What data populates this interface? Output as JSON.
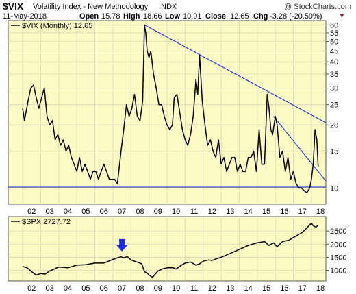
{
  "header": {
    "symbol": "$VIX",
    "name": "Volatility Index - New Methodology",
    "exchange": "INDX",
    "copyright": "@ StockCharts.com",
    "date": "11-May-2018",
    "open_label": "Open",
    "open": "15.78",
    "high_label": "High",
    "high": "18.66",
    "low_label": "Low",
    "low": "10.91",
    "close_label": "Close",
    "close": "12.65",
    "chg_label": "Chg",
    "chg": "-3.28 (-20.59%)",
    "chg_marker": "▼"
  },
  "colors": {
    "panel_bg": "#fafac3",
    "price_line": "#000000",
    "trendline": "#1c2bd6",
    "arrow": "#1c2be8",
    "grid": "#d7d7b9",
    "chg_marker": "#8b1538"
  },
  "chart_data": [
    {
      "type": "line",
      "legend": "$VIX (Monthly) 12.65",
      "scale": "log",
      "ylim": [
        8.5,
        62
      ],
      "yticks": [
        "60",
        "55",
        "50",
        "45",
        "40",
        "35",
        "30",
        "25",
        "20",
        "15",
        "10"
      ],
      "xticks": [
        "02",
        "03",
        "04",
        "05",
        "06",
        "07",
        "08",
        "09",
        "10",
        "11",
        "12",
        "13",
        "14",
        "15",
        "16",
        "17",
        "18"
      ],
      "x": [
        2002.0,
        2002.1,
        2002.3,
        2002.45,
        2002.6,
        2002.75,
        2002.9,
        2003.05,
        2003.2,
        2003.35,
        2003.5,
        2003.65,
        2003.8,
        2003.95,
        2004.1,
        2004.25,
        2004.4,
        2004.55,
        2004.7,
        2004.85,
        2005.0,
        2005.15,
        2005.3,
        2005.45,
        2005.6,
        2005.75,
        2005.9,
        2006.05,
        2006.2,
        2006.35,
        2006.5,
        2006.65,
        2006.8,
        2006.95,
        2007.1,
        2007.25,
        2007.45,
        2007.6,
        2007.75,
        2007.9,
        2008.05,
        2008.2,
        2008.35,
        2008.5,
        2008.65,
        2008.75,
        2008.82,
        2008.9,
        2009.0,
        2009.1,
        2009.25,
        2009.4,
        2009.55,
        2009.7,
        2009.85,
        2010.0,
        2010.15,
        2010.3,
        2010.4,
        2010.55,
        2010.7,
        2010.85,
        2011.0,
        2011.15,
        2011.3,
        2011.45,
        2011.6,
        2011.7,
        2011.8,
        2011.95,
        2012.1,
        2012.25,
        2012.4,
        2012.55,
        2012.7,
        2012.85,
        2013.0,
        2013.15,
        2013.3,
        2013.45,
        2013.6,
        2013.75,
        2013.9,
        2014.05,
        2014.2,
        2014.35,
        2014.5,
        2014.65,
        2014.8,
        2014.95,
        2015.1,
        2015.25,
        2015.4,
        2015.55,
        2015.65,
        2015.75,
        2015.85,
        2016.0,
        2016.1,
        2016.25,
        2016.4,
        2016.55,
        2016.7,
        2016.85,
        2017.0,
        2017.15,
        2017.3,
        2017.45,
        2017.6,
        2017.75,
        2017.9,
        2018.0,
        2018.1,
        2018.2,
        2018.3,
        2018.37
      ],
      "values": [
        24,
        21,
        26,
        30,
        31,
        27,
        24,
        27,
        30,
        22,
        20,
        21,
        17,
        18,
        16,
        17,
        15,
        16,
        14,
        13,
        12,
        14,
        12,
        13,
        12,
        11,
        12,
        12,
        11,
        12,
        13,
        12,
        11,
        11,
        11,
        10.5,
        15,
        19,
        25,
        22,
        24,
        28,
        22,
        21,
        26,
        60,
        55,
        45,
        42,
        45,
        35,
        30,
        25,
        25,
        22,
        20,
        19,
        20,
        27,
        28,
        23,
        19,
        17,
        16,
        18,
        22,
        33,
        28,
        43,
        26,
        20,
        16,
        17,
        15,
        14,
        17,
        13,
        14,
        12,
        13,
        14,
        14,
        12,
        13,
        12,
        12,
        14,
        14,
        15,
        12,
        19,
        13,
        13,
        28,
        24,
        19,
        18,
        22,
        20,
        14,
        15,
        12,
        14,
        11,
        12,
        10.5,
        10,
        10,
        9.7,
        9.5,
        10,
        11,
        13,
        19,
        17,
        12.65
      ]
    },
    {
      "type": "line",
      "legend": "$SPX 2727.72",
      "ylim": [
        650,
        3000
      ],
      "yticks": [
        "2500",
        "2000",
        "1500",
        "1000"
      ],
      "xticks": [
        "02",
        "03",
        "04",
        "05",
        "06",
        "07",
        "08",
        "09",
        "10",
        "11",
        "12",
        "13",
        "14",
        "15",
        "16",
        "17",
        "18"
      ],
      "x": [
        2002.0,
        2002.25,
        2002.5,
        2002.75,
        2003.0,
        2003.25,
        2003.5,
        2003.75,
        2004.0,
        2004.5,
        2005.0,
        2005.5,
        2006.0,
        2006.5,
        2007.0,
        2007.25,
        2007.45,
        2007.6,
        2007.8,
        2008.0,
        2008.2,
        2008.4,
        2008.6,
        2008.75,
        2008.9,
        2009.0,
        2009.2,
        2009.5,
        2009.75,
        2010.0,
        2010.35,
        2010.5,
        2010.75,
        2011.0,
        2011.3,
        2011.6,
        2011.8,
        2012.0,
        2012.3,
        2012.5,
        2012.75,
        2013.0,
        2013.5,
        2014.0,
        2014.5,
        2015.0,
        2015.4,
        2015.65,
        2015.9,
        2016.1,
        2016.4,
        2016.75,
        2017.0,
        2017.5,
        2018.0,
        2018.1,
        2018.25,
        2018.37
      ],
      "values": [
        1150,
        1100,
        950,
        820,
        880,
        860,
        980,
        1050,
        1130,
        1100,
        1200,
        1220,
        1280,
        1280,
        1420,
        1480,
        1520,
        1480,
        1530,
        1400,
        1350,
        1300,
        1250,
        950,
        900,
        820,
        740,
        980,
        1060,
        1100,
        1100,
        1050,
        1180,
        1280,
        1320,
        1200,
        1250,
        1350,
        1400,
        1380,
        1450,
        1500,
        1650,
        1800,
        1950,
        2050,
        2100,
        1950,
        2050,
        1900,
        2100,
        2150,
        2250,
        2450,
        2800,
        2700,
        2650,
        2727.72
      ]
    }
  ],
  "annotations": {
    "trendlines": [
      {
        "panel": 0,
        "from": [
          2008.75,
          60
        ],
        "to": [
          2018.8,
          20.5
        ]
      },
      {
        "panel": 0,
        "from": [
          2015.9,
          22
        ],
        "to": [
          2018.8,
          10.8
        ]
      },
      {
        "panel": 0,
        "from": [
          2001.2,
          10.1
        ],
        "to": [
          2018.8,
          10.1
        ]
      }
    ],
    "marker": {
      "panel": 1,
      "shape": "down-arrow",
      "x": 2007.5
    }
  }
}
